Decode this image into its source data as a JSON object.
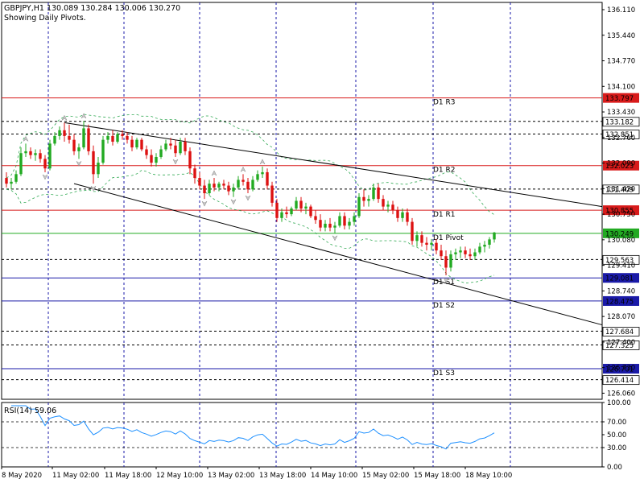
{
  "header": {
    "title": "GBPJPY,H1  130.089 130.284 130.006 130.270",
    "subtitle": "Showing Daily Pivots."
  },
  "chart_data": {
    "type": "candlestick",
    "symbol": "GBPJPY",
    "timeframe": "H1",
    "ohlc_last": {
      "open": 130.089,
      "high": 130.284,
      "low": 130.006,
      "close": 130.27
    },
    "ylim": [
      125.9,
      136.3
    ],
    "y_ticks": [
      "136.110",
      "135.440",
      "134.770",
      "134.100",
      "133.430",
      "132.760",
      "132.090",
      "131.420",
      "130.750",
      "130.080",
      "129.410",
      "128.740",
      "128.070",
      "127.400",
      "126.730",
      "126.060"
    ],
    "x_ticks": [
      "8 May 2020",
      "11 May 02:00",
      "11 May 18:00",
      "12 May 10:00",
      "13 May 02:00",
      "13 May 18:00",
      "14 May 10:00",
      "15 May 02:00",
      "15 May 18:00",
      "18 May 10:00"
    ],
    "pivot_levels": [
      {
        "name": "D1 R3",
        "value": 133.797,
        "label": "133.797",
        "color": "#d81b1b",
        "style": "solid"
      },
      {
        "name": "D1 R2",
        "value": 132.023,
        "label": "132.023",
        "color": "#d81b1b",
        "style": "solid"
      },
      {
        "name": "D1 R1",
        "value": 130.855,
        "label": "130.855",
        "color": "#d81b1b",
        "style": "solid"
      },
      {
        "name": "D1 Pivot",
        "value": 130.249,
        "label": "130.249",
        "color": "#22aa22",
        "style": "solid"
      },
      {
        "name": "D1 S1",
        "value": 129.081,
        "label": "129.081",
        "color": "#1a1aa8",
        "style": "solid"
      },
      {
        "name": "D1 S2",
        "value": 128.475,
        "label": "128.475",
        "color": "#1a1aa8",
        "style": "solid"
      },
      {
        "name": "D1 S3",
        "value": 126.701,
        "label": "126.701",
        "color": "#1a1aa8",
        "style": "solid"
      }
    ],
    "dashed_levels": [
      {
        "value": 133.182,
        "label": "133.182"
      },
      {
        "value": 132.851,
        "label": "132.851"
      },
      {
        "value": 131.409,
        "label": "131.409"
      },
      {
        "value": 129.563,
        "label": "129.563"
      },
      {
        "value": 127.684,
        "label": "127.684"
      },
      {
        "value": 127.325,
        "label": "127.325"
      },
      {
        "value": 126.414,
        "label": "126.414"
      }
    ],
    "trendlines": [
      {
        "from_index": 12,
        "from_price": 133.15,
        "to_index": 999,
        "to_price": 130.95
      },
      {
        "from_index": 14,
        "from_price": 131.55,
        "to_index": 999,
        "to_price": 127.85
      }
    ],
    "candles": [
      {
        "o": 131.7,
        "h": 131.85,
        "l": 131.45,
        "c": 131.55
      },
      {
        "o": 131.55,
        "h": 131.7,
        "l": 131.4,
        "c": 131.6
      },
      {
        "o": 131.6,
        "h": 131.9,
        "l": 131.55,
        "c": 131.8
      },
      {
        "o": 131.8,
        "h": 132.5,
        "l": 131.75,
        "c": 132.35
      },
      {
        "o": 132.35,
        "h": 132.6,
        "l": 132.25,
        "c": 132.4
      },
      {
        "o": 132.4,
        "h": 132.5,
        "l": 132.2,
        "c": 132.3
      },
      {
        "o": 132.3,
        "h": 132.45,
        "l": 132.15,
        "c": 132.35
      },
      {
        "o": 132.35,
        "h": 132.45,
        "l": 132.1,
        "c": 132.2
      },
      {
        "o": 132.2,
        "h": 132.3,
        "l": 131.85,
        "c": 131.95
      },
      {
        "o": 131.95,
        "h": 132.7,
        "l": 131.9,
        "c": 132.6
      },
      {
        "o": 132.6,
        "h": 132.9,
        "l": 132.55,
        "c": 132.8
      },
      {
        "o": 132.8,
        "h": 133.05,
        "l": 132.7,
        "c": 132.95
      },
      {
        "o": 132.95,
        "h": 133.15,
        "l": 132.65,
        "c": 132.8
      },
      {
        "o": 132.8,
        "h": 133.1,
        "l": 132.6,
        "c": 132.7
      },
      {
        "o": 132.7,
        "h": 132.85,
        "l": 132.3,
        "c": 132.4
      },
      {
        "o": 132.4,
        "h": 132.6,
        "l": 132.2,
        "c": 132.5
      },
      {
        "o": 132.5,
        "h": 133.2,
        "l": 132.45,
        "c": 133.0
      },
      {
        "o": 133.0,
        "h": 133.1,
        "l": 132.3,
        "c": 132.4
      },
      {
        "o": 132.4,
        "h": 132.55,
        "l": 131.55,
        "c": 131.8
      },
      {
        "o": 131.8,
        "h": 132.25,
        "l": 131.7,
        "c": 132.1
      },
      {
        "o": 132.1,
        "h": 132.8,
        "l": 132.05,
        "c": 132.7
      },
      {
        "o": 132.7,
        "h": 132.9,
        "l": 132.6,
        "c": 132.8
      },
      {
        "o": 132.8,
        "h": 132.95,
        "l": 132.55,
        "c": 132.65
      },
      {
        "o": 132.65,
        "h": 132.9,
        "l": 132.6,
        "c": 132.85
      },
      {
        "o": 132.85,
        "h": 132.95,
        "l": 132.7,
        "c": 132.8
      },
      {
        "o": 132.8,
        "h": 132.9,
        "l": 132.6,
        "c": 132.7
      },
      {
        "o": 132.7,
        "h": 132.8,
        "l": 132.4,
        "c": 132.5
      },
      {
        "o": 132.5,
        "h": 132.75,
        "l": 132.45,
        "c": 132.7
      },
      {
        "o": 132.7,
        "h": 132.75,
        "l": 132.4,
        "c": 132.45
      },
      {
        "o": 132.45,
        "h": 132.55,
        "l": 132.2,
        "c": 132.3
      },
      {
        "o": 132.3,
        "h": 132.45,
        "l": 132.0,
        "c": 132.1
      },
      {
        "o": 132.1,
        "h": 132.35,
        "l": 132.0,
        "c": 132.25
      },
      {
        "o": 132.25,
        "h": 132.55,
        "l": 132.2,
        "c": 132.45
      },
      {
        "o": 132.45,
        "h": 132.7,
        "l": 132.4,
        "c": 132.6
      },
      {
        "o": 132.6,
        "h": 132.75,
        "l": 132.45,
        "c": 132.55
      },
      {
        "o": 132.55,
        "h": 132.7,
        "l": 132.25,
        "c": 132.35
      },
      {
        "o": 132.35,
        "h": 132.75,
        "l": 132.3,
        "c": 132.65
      },
      {
        "o": 132.65,
        "h": 132.75,
        "l": 132.3,
        "c": 132.4
      },
      {
        "o": 132.4,
        "h": 132.5,
        "l": 131.8,
        "c": 131.95
      },
      {
        "o": 131.95,
        "h": 132.05,
        "l": 131.55,
        "c": 131.7
      },
      {
        "o": 131.7,
        "h": 131.85,
        "l": 131.4,
        "c": 131.5
      },
      {
        "o": 131.5,
        "h": 131.65,
        "l": 131.15,
        "c": 131.3
      },
      {
        "o": 131.3,
        "h": 131.65,
        "l": 131.25,
        "c": 131.55
      },
      {
        "o": 131.55,
        "h": 131.7,
        "l": 131.35,
        "c": 131.45
      },
      {
        "o": 131.45,
        "h": 131.6,
        "l": 131.35,
        "c": 131.55
      },
      {
        "o": 131.55,
        "h": 131.65,
        "l": 131.4,
        "c": 131.5
      },
      {
        "o": 131.5,
        "h": 131.6,
        "l": 131.25,
        "c": 131.35
      },
      {
        "o": 131.35,
        "h": 131.55,
        "l": 131.2,
        "c": 131.45
      },
      {
        "o": 131.45,
        "h": 131.75,
        "l": 131.4,
        "c": 131.65
      },
      {
        "o": 131.65,
        "h": 131.8,
        "l": 131.5,
        "c": 131.6
      },
      {
        "o": 131.6,
        "h": 131.7,
        "l": 131.3,
        "c": 131.4
      },
      {
        "o": 131.4,
        "h": 131.75,
        "l": 131.35,
        "c": 131.65
      },
      {
        "o": 131.65,
        "h": 131.9,
        "l": 131.6,
        "c": 131.8
      },
      {
        "o": 131.8,
        "h": 132.0,
        "l": 131.7,
        "c": 131.85
      },
      {
        "o": 131.85,
        "h": 131.95,
        "l": 131.4,
        "c": 131.5
      },
      {
        "o": 131.5,
        "h": 131.6,
        "l": 130.95,
        "c": 131.05
      },
      {
        "o": 131.05,
        "h": 131.15,
        "l": 130.55,
        "c": 130.65
      },
      {
        "o": 130.65,
        "h": 130.9,
        "l": 130.55,
        "c": 130.8
      },
      {
        "o": 130.8,
        "h": 130.95,
        "l": 130.65,
        "c": 130.75
      },
      {
        "o": 130.75,
        "h": 130.95,
        "l": 130.7,
        "c": 130.9
      },
      {
        "o": 130.9,
        "h": 131.2,
        "l": 130.85,
        "c": 131.1
      },
      {
        "o": 131.1,
        "h": 131.2,
        "l": 130.8,
        "c": 130.9
      },
      {
        "o": 130.9,
        "h": 131.05,
        "l": 130.75,
        "c": 130.95
      },
      {
        "o": 130.95,
        "h": 131.0,
        "l": 130.65,
        "c": 130.7
      },
      {
        "o": 130.7,
        "h": 130.85,
        "l": 130.5,
        "c": 130.6
      },
      {
        "o": 130.6,
        "h": 130.75,
        "l": 130.3,
        "c": 130.4
      },
      {
        "o": 130.4,
        "h": 130.6,
        "l": 130.3,
        "c": 130.5
      },
      {
        "o": 130.5,
        "h": 130.65,
        "l": 130.3,
        "c": 130.4
      },
      {
        "o": 130.4,
        "h": 130.55,
        "l": 130.25,
        "c": 130.45
      },
      {
        "o": 130.45,
        "h": 130.8,
        "l": 130.4,
        "c": 130.7
      },
      {
        "o": 130.7,
        "h": 130.8,
        "l": 130.35,
        "c": 130.45
      },
      {
        "o": 130.45,
        "h": 130.65,
        "l": 130.35,
        "c": 130.55
      },
      {
        "o": 130.55,
        "h": 130.8,
        "l": 130.45,
        "c": 130.7
      },
      {
        "o": 130.7,
        "h": 131.3,
        "l": 130.65,
        "c": 131.2
      },
      {
        "o": 131.2,
        "h": 131.4,
        "l": 130.95,
        "c": 131.1
      },
      {
        "o": 131.1,
        "h": 131.25,
        "l": 130.95,
        "c": 131.15
      },
      {
        "o": 131.15,
        "h": 131.55,
        "l": 131.1,
        "c": 131.45
      },
      {
        "o": 131.45,
        "h": 131.55,
        "l": 131.05,
        "c": 131.15
      },
      {
        "o": 131.15,
        "h": 131.25,
        "l": 130.85,
        "c": 130.95
      },
      {
        "o": 130.95,
        "h": 131.1,
        "l": 130.8,
        "c": 131.0
      },
      {
        "o": 131.0,
        "h": 131.1,
        "l": 130.75,
        "c": 130.85
      },
      {
        "o": 130.85,
        "h": 130.95,
        "l": 130.55,
        "c": 130.65
      },
      {
        "o": 130.65,
        "h": 130.9,
        "l": 130.55,
        "c": 130.8
      },
      {
        "o": 130.8,
        "h": 130.9,
        "l": 130.45,
        "c": 130.55
      },
      {
        "o": 130.55,
        "h": 130.65,
        "l": 129.95,
        "c": 130.05
      },
      {
        "o": 130.05,
        "h": 130.3,
        "l": 129.9,
        "c": 130.2
      },
      {
        "o": 130.2,
        "h": 130.3,
        "l": 129.9,
        "c": 130.0
      },
      {
        "o": 130.0,
        "h": 130.15,
        "l": 129.8,
        "c": 129.95
      },
      {
        "o": 129.95,
        "h": 130.1,
        "l": 129.8,
        "c": 130.0
      },
      {
        "o": 130.0,
        "h": 130.1,
        "l": 129.7,
        "c": 129.8
      },
      {
        "o": 129.8,
        "h": 129.95,
        "l": 129.55,
        "c": 129.65
      },
      {
        "o": 129.65,
        "h": 129.8,
        "l": 129.15,
        "c": 129.35
      },
      {
        "o": 129.35,
        "h": 129.8,
        "l": 129.25,
        "c": 129.7
      },
      {
        "o": 129.7,
        "h": 129.85,
        "l": 129.55,
        "c": 129.75
      },
      {
        "o": 129.75,
        "h": 129.9,
        "l": 129.6,
        "c": 129.8
      },
      {
        "o": 129.8,
        "h": 129.9,
        "l": 129.6,
        "c": 129.7
      },
      {
        "o": 129.7,
        "h": 129.85,
        "l": 129.55,
        "c": 129.65
      },
      {
        "o": 129.65,
        "h": 129.85,
        "l": 129.55,
        "c": 129.75
      },
      {
        "o": 129.75,
        "h": 130.0,
        "l": 129.7,
        "c": 129.9
      },
      {
        "o": 129.9,
        "h": 130.05,
        "l": 129.75,
        "c": 129.95
      },
      {
        "o": 129.95,
        "h": 130.15,
        "l": 129.85,
        "c": 130.09
      },
      {
        "o": 130.089,
        "h": 130.284,
        "l": 130.006,
        "c": 130.27
      }
    ]
  },
  "rsi": {
    "label": "RSI(14) 59.06",
    "ticks": [
      "100.00",
      "70.00",
      "50.00",
      "30.00",
      "0.00"
    ],
    "levels": [
      70,
      30
    ],
    "ylim": [
      0,
      100
    ]
  },
  "colors": {
    "bull": "#22aa22",
    "bear": "#dd1111",
    "vgrid": "#1a1aa8",
    "rsi_line": "#1e90ff",
    "resistance": "#d81b1b",
    "support": "#1a1aa8",
    "pivot": "#22aa22"
  }
}
